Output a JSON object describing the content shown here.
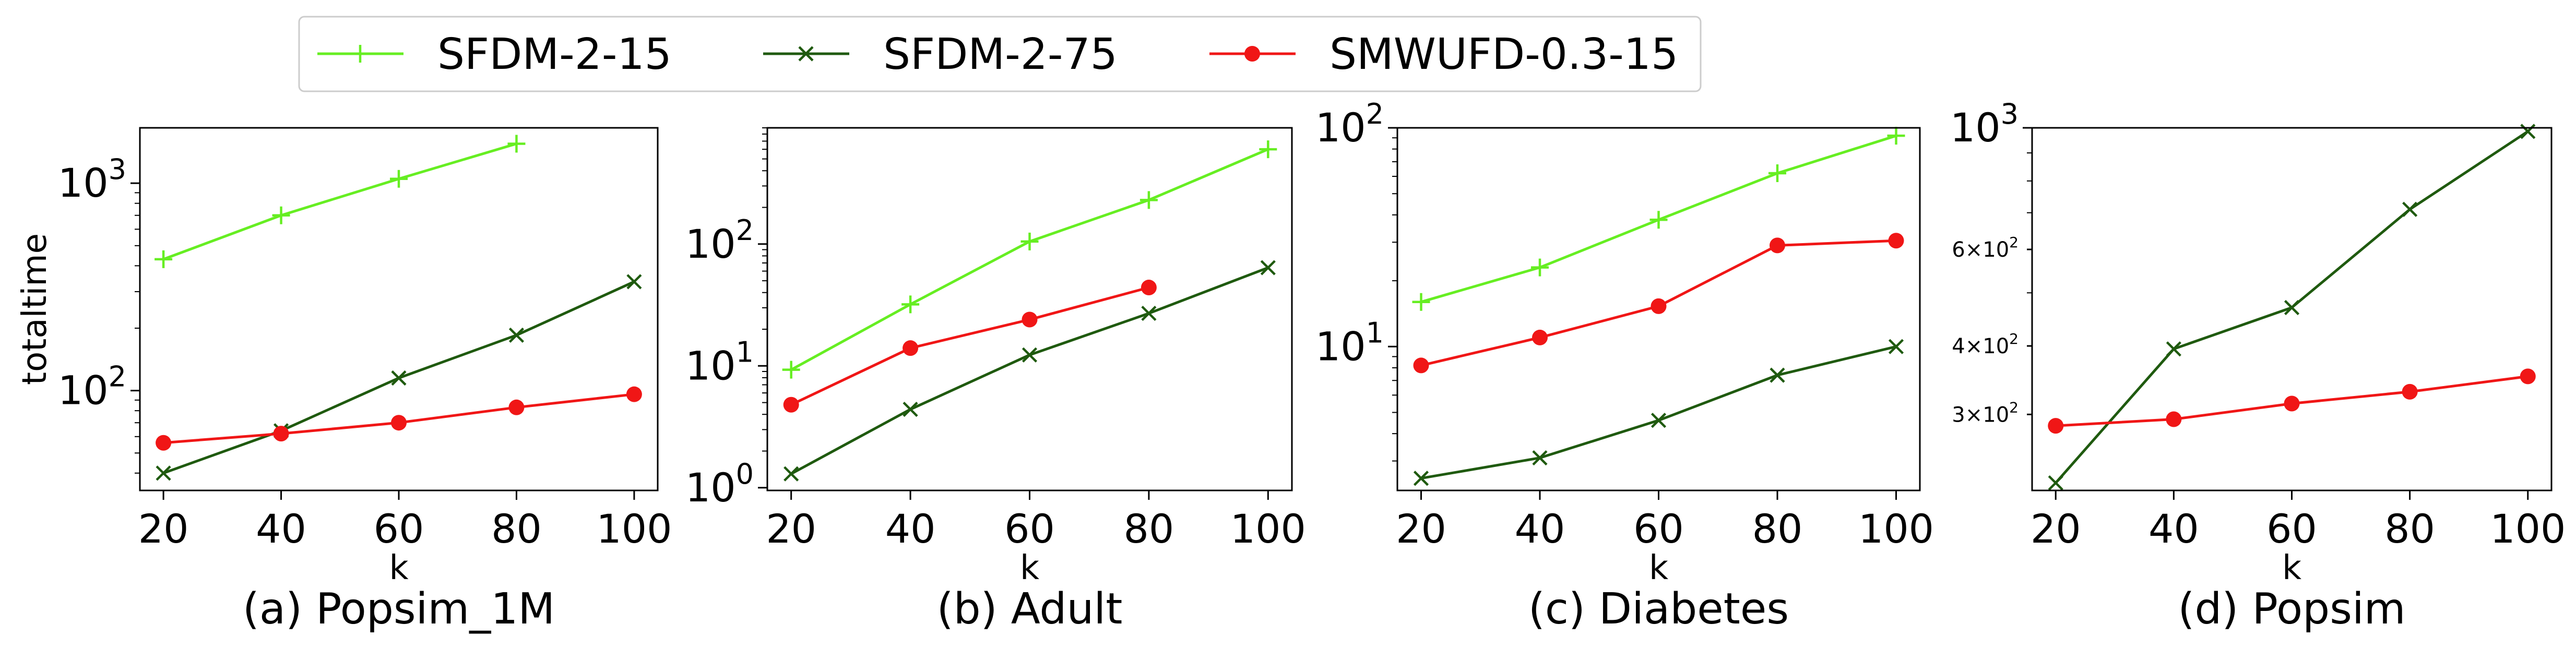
{
  "legend": {
    "items": [
      {
        "label": "SFDM-2-15",
        "color": "#66ee22",
        "marker": "plus"
      },
      {
        "label": "SFDM-2-75",
        "color": "#1f5a0f",
        "marker": "x"
      },
      {
        "label": "SMWUFD-0.3-15",
        "color": "#f01616",
        "marker": "circle"
      }
    ]
  },
  "chart_data": [
    {
      "type": "line",
      "caption": "(a) Popsim_1M",
      "xlabel": "k",
      "ylabel": "totaltime",
      "yscale": "log",
      "ylim": [
        33,
        1850
      ],
      "xlim": [
        16,
        104
      ],
      "x_ticks": [
        20,
        40,
        60,
        80,
        100
      ],
      "y_ticks": [
        {
          "value": 100,
          "base": "10",
          "exp": "2"
        },
        {
          "value": 1000,
          "base": "10",
          "exp": "3"
        }
      ],
      "series": [
        {
          "name": "SFDM-2-15",
          "x": [
            20,
            40,
            60,
            80
          ],
          "values": [
            430,
            700,
            1050,
            1550
          ]
        },
        {
          "name": "SFDM-2-75",
          "x": [
            20,
            40,
            60,
            80,
            100
          ],
          "values": [
            40,
            64,
            115,
            185,
            335
          ]
        },
        {
          "name": "SMWUFD-0.3-15",
          "x": [
            20,
            40,
            60,
            80,
            100
          ],
          "values": [
            56,
            62,
            70,
            83,
            96
          ]
        }
      ]
    },
    {
      "type": "line",
      "caption": "(b) Adult",
      "xlabel": "k",
      "ylabel": "",
      "yscale": "log",
      "ylim": [
        0.95,
        900
      ],
      "xlim": [
        16,
        104
      ],
      "x_ticks": [
        20,
        40,
        60,
        80,
        100
      ],
      "y_ticks": [
        {
          "value": 1,
          "base": "10",
          "exp": "0"
        },
        {
          "value": 10,
          "base": "10",
          "exp": "1"
        },
        {
          "value": 100,
          "base": "10",
          "exp": "2"
        }
      ],
      "series": [
        {
          "name": "SFDM-2-15",
          "x": [
            20,
            40,
            60,
            80,
            100
          ],
          "values": [
            9.3,
            32,
            105,
            230,
            600
          ]
        },
        {
          "name": "SFDM-2-75",
          "x": [
            20,
            40,
            60,
            80,
            100
          ],
          "values": [
            1.3,
            4.4,
            12.3,
            27,
            64
          ]
        },
        {
          "name": "SMWUFD-0.3-15",
          "x": [
            20,
            40,
            60,
            80
          ],
          "values": [
            4.8,
            14,
            24,
            44
          ]
        }
      ]
    },
    {
      "type": "line",
      "caption": "(c) Diabetes",
      "xlabel": "k",
      "ylabel": "",
      "yscale": "log",
      "ylim": [
        2.2,
        100
      ],
      "xlim": [
        16,
        104
      ],
      "x_ticks": [
        20,
        40,
        60,
        80,
        100
      ],
      "y_ticks": [
        {
          "value": 10,
          "base": "10",
          "exp": "1"
        },
        {
          "value": 100,
          "base": "10",
          "exp": "2"
        }
      ],
      "series": [
        {
          "name": "SFDM-2-15",
          "x": [
            20,
            40,
            60,
            80,
            100
          ],
          "values": [
            16,
            23,
            38,
            62,
            92
          ]
        },
        {
          "name": "SFDM-2-75",
          "x": [
            20,
            40,
            60,
            80,
            100
          ],
          "values": [
            2.5,
            3.1,
            4.6,
            7.4,
            10
          ]
        },
        {
          "name": "SMWUFD-0.3-15",
          "x": [
            20,
            40,
            60,
            80,
            100
          ],
          "values": [
            8.2,
            11,
            15.3,
            29,
            30.5
          ]
        }
      ]
    },
    {
      "type": "line",
      "caption": "(d) Popsim",
      "xlabel": "k",
      "ylabel": "",
      "yscale": "log",
      "ylim": [
        218,
        1000
      ],
      "xlim": [
        16,
        104
      ],
      "x_ticks": [
        20,
        40,
        60,
        80,
        100
      ],
      "y_ticks": [
        {
          "value": 300,
          "base": "3×10",
          "exp": "2",
          "minor": true
        },
        {
          "value": 400,
          "base": "4×10",
          "exp": "2",
          "minor": true
        },
        {
          "value": 600,
          "base": "6×10",
          "exp": "2",
          "minor": true
        },
        {
          "value": 1000,
          "base": "10",
          "exp": "3"
        }
      ],
      "series": [
        {
          "name": "SFDM-2-75",
          "x": [
            20,
            40,
            60,
            80,
            100
          ],
          "values": [
            225,
            395,
            470,
            710,
            985
          ]
        },
        {
          "name": "SMWUFD-0.3-15",
          "x": [
            20,
            40,
            60,
            80,
            100
          ],
          "values": [
            286,
            294,
            314,
            330,
            352
          ]
        }
      ]
    }
  ]
}
